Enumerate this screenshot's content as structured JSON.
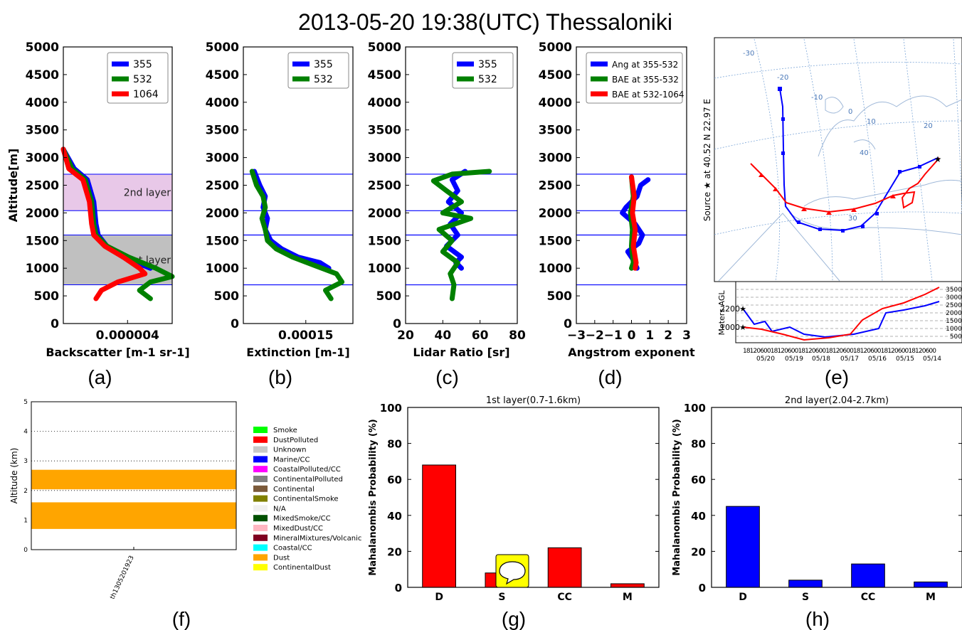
{
  "page_title": "2013-05-20 19:38(UTC) Thessaloniki",
  "colors": {
    "blue": "#0000ff",
    "green": "#008000",
    "red": "#ff0000",
    "pink_layer": "#e8c8e8",
    "gray_layer": "#c0c0c0",
    "orange": "#ffa500"
  },
  "chart_data": [
    {
      "id": "a",
      "type": "line",
      "caption": "(a)",
      "xlabel": "Backscatter [m-1 sr-1]",
      "ylabel": "Altitude[m]",
      "xticks": [
        "0.000004"
      ],
      "ylim": [
        0,
        5000
      ],
      "yticks": [
        "0",
        "500",
        "1000",
        "1500",
        "2000",
        "2500",
        "3000",
        "3500",
        "4000",
        "4500",
        "5000"
      ],
      "legend": [
        "355",
        "532",
        "1064"
      ],
      "layers": [
        {
          "label": "2nd layer",
          "range": [
            2040,
            2700
          ],
          "color": "#e8c8e8"
        },
        {
          "label": "1st layer",
          "range": [
            700,
            1600
          ],
          "color": "#c0c0c0"
        }
      ],
      "series": [
        {
          "name": "355",
          "color": "#0000ff",
          "x": [
            0.0,
            0.1,
            0.22,
            0.28,
            0.3,
            0.32,
            0.4,
            0.55,
            0.8
          ],
          "y": [
            3150,
            2800,
            2600,
            2200,
            1800,
            1600,
            1400,
            1200,
            1000
          ]
        },
        {
          "name": "532",
          "color": "#008000",
          "x": [
            0.0,
            0.08,
            0.2,
            0.26,
            0.28,
            0.3,
            0.4,
            0.6,
            0.85,
            1.0,
            0.8,
            0.7,
            0.8
          ],
          "y": [
            3150,
            2800,
            2600,
            2200,
            1800,
            1600,
            1400,
            1200,
            1000,
            850,
            750,
            600,
            450
          ]
        },
        {
          "name": "1064",
          "color": "#ff0000",
          "x": [
            0.0,
            0.05,
            0.18,
            0.24,
            0.26,
            0.28,
            0.38,
            0.55,
            0.7,
            0.75,
            0.5,
            0.35,
            0.3
          ],
          "y": [
            3150,
            2800,
            2600,
            2200,
            1800,
            1600,
            1400,
            1200,
            1000,
            900,
            750,
            600,
            450
          ]
        }
      ]
    },
    {
      "id": "b",
      "type": "line",
      "caption": "(b)",
      "xlabel": "Extinction [m-1]",
      "xticks": [
        "0.00015"
      ],
      "ylim": [
        0,
        5000
      ],
      "yticks": [
        "0",
        "500",
        "1000",
        "1500",
        "2000",
        "2500",
        "3000",
        "3500",
        "4000",
        "4500",
        "5000"
      ],
      "legend": [
        "355",
        "532"
      ],
      "hlines": [
        2700,
        2040,
        1600,
        700
      ],
      "series": [
        {
          "name": "355",
          "color": "#0000ff",
          "x": [
            0.1,
            0.15,
            0.2,
            0.18,
            0.22,
            0.2,
            0.25,
            0.35,
            0.5,
            0.7,
            0.78
          ],
          "y": [
            2750,
            2500,
            2300,
            2100,
            1900,
            1700,
            1500,
            1350,
            1200,
            1100,
            1000
          ]
        },
        {
          "name": "532",
          "color": "#008000",
          "x": [
            0.08,
            0.12,
            0.18,
            0.2,
            0.17,
            0.2,
            0.22,
            0.3,
            0.45,
            0.65,
            0.85,
            0.9,
            0.75,
            0.8
          ],
          "y": [
            2750,
            2500,
            2300,
            2100,
            1900,
            1700,
            1500,
            1350,
            1200,
            1050,
            900,
            750,
            600,
            450
          ]
        }
      ]
    },
    {
      "id": "c",
      "type": "line",
      "caption": "(c)",
      "xlabel": "Lidar Ratio [sr]",
      "xlim": [
        20,
        80
      ],
      "xticks": [
        "20",
        "40",
        "60",
        "80"
      ],
      "ylim": [
        0,
        5000
      ],
      "yticks": [
        "0",
        "500",
        "1000",
        "1500",
        "2000",
        "2500",
        "3000",
        "3500",
        "4000",
        "4500",
        "5000"
      ],
      "legend": [
        "355",
        "532"
      ],
      "hlines": [
        2700,
        2040,
        1600,
        700
      ],
      "series": [
        {
          "name": "355",
          "color": "#0000ff",
          "x": [
            52,
            45,
            48,
            43,
            50,
            44,
            48,
            42,
            50,
            47,
            50
          ],
          "y": [
            2750,
            2600,
            2400,
            2200,
            2000,
            1800,
            1600,
            1400,
            1200,
            1100,
            1000
          ]
        },
        {
          "name": "532",
          "color": "#008000",
          "x": [
            65,
            45,
            35,
            42,
            50,
            40,
            55,
            38,
            45,
            40,
            48,
            44,
            46,
            45
          ],
          "y": [
            2750,
            2700,
            2580,
            2400,
            2200,
            2000,
            1900,
            1700,
            1500,
            1300,
            1100,
            900,
            700,
            450
          ]
        }
      ]
    },
    {
      "id": "d",
      "type": "line",
      "caption": "(d)",
      "xlabel": "Angstrom exponent",
      "xlim": [
        -3,
        3
      ],
      "xticks": [
        "−3",
        "−2",
        "−1",
        "0",
        "1",
        "2",
        "3"
      ],
      "ylim": [
        0,
        5000
      ],
      "yticks": [
        "0",
        "500",
        "1000",
        "1500",
        "2000",
        "2500",
        "3000",
        "3500",
        "4000",
        "4500",
        "5000"
      ],
      "legend": [
        "Ang at 355-532",
        "BAE at 355-532",
        "BAE at 532-1064"
      ],
      "hlines": [
        2700,
        2040,
        1600,
        700
      ],
      "series": [
        {
          "name": "Ang at 355-532",
          "color": "#0000ff",
          "x": [
            0.9,
            0.5,
            0.3,
            -0.3,
            -0.5,
            0.2,
            0.6,
            0.4,
            -0.2,
            0.1,
            0.3
          ],
          "y": [
            2600,
            2500,
            2300,
            2100,
            2000,
            1800,
            1600,
            1450,
            1300,
            1150,
            1000
          ]
        },
        {
          "name": "BAE at 355-532",
          "color": "#008000",
          "x": [
            0.0,
            0.1,
            -0.05,
            0.05,
            0.0,
            0.1,
            0.0
          ],
          "y": [
            2650,
            2300,
            2000,
            1700,
            1400,
            1100,
            1000
          ]
        },
        {
          "name": "BAE at 532-1064",
          "color": "#ff0000",
          "x": [
            0.0,
            0.15,
            0.05,
            0.2,
            0.1,
            0.25,
            0.2
          ],
          "y": [
            2650,
            2300,
            2000,
            1700,
            1400,
            1100,
            1000
          ]
        }
      ]
    },
    {
      "id": "f",
      "type": "bar",
      "caption": "(f)",
      "ylabel": "Altitude (km)",
      "ylim": [
        0,
        5
      ],
      "yticks": [
        "0",
        "1",
        "2",
        "3",
        "4",
        "5"
      ],
      "categories": [
        "th1305201923"
      ],
      "layers": [
        {
          "class": "Dust",
          "range": [
            0.7,
            1.6
          ],
          "color": "#ffa500"
        },
        {
          "class": "Dust",
          "range": [
            2.04,
            2.7
          ],
          "color": "#ffa500"
        }
      ],
      "legend": [
        {
          "name": "Smoke",
          "color": "#00ff00"
        },
        {
          "name": "DustPolluted",
          "color": "#ff0000"
        },
        {
          "name": "Unknown",
          "color": "#c8c8c8"
        },
        {
          "name": "Marine/CC",
          "color": "#0000ff"
        },
        {
          "name": "CoastalPolluted/CC",
          "color": "#ff00ff"
        },
        {
          "name": "ContinentalPolluted",
          "color": "#808080"
        },
        {
          "name": "Continental",
          "color": "#7b5a3a"
        },
        {
          "name": "ContinentalSmoke",
          "color": "#808000"
        },
        {
          "name": "N/A",
          "color": "#f0f0f0"
        },
        {
          "name": "MixedSmoke/CC",
          "color": "#005000"
        },
        {
          "name": "MixedDust/CC",
          "color": "#ffb6c1"
        },
        {
          "name": "MineralMixtures/Volcanic",
          "color": "#800020"
        },
        {
          "name": "Coastal/CC",
          "color": "#00ffff"
        },
        {
          "name": "Dust",
          "color": "#ffa500"
        },
        {
          "name": "ContinentalDust",
          "color": "#ffff00"
        }
      ]
    },
    {
      "id": "g",
      "type": "bar",
      "caption": "(g)",
      "title": "1st layer(0.7-1.6km)",
      "ylabel": "Mahalanombis Probability (%)",
      "ylim": [
        0,
        100
      ],
      "yticks": [
        "0",
        "20",
        "40",
        "60",
        "80",
        "100"
      ],
      "categories": [
        "D",
        "S",
        "CC",
        "M"
      ],
      "values": [
        68,
        8,
        22,
        2
      ],
      "color": "#ff0000"
    },
    {
      "id": "h",
      "type": "bar",
      "caption": "(h)",
      "title": "2nd layer(2.04-2.7km)",
      "ylabel": "Mahalanombis Probability (%)",
      "ylim": [
        0,
        100
      ],
      "yticks": [
        "0",
        "20",
        "40",
        "60",
        "80",
        "100"
      ],
      "categories": [
        "D",
        "S",
        "CC",
        "M"
      ],
      "values": [
        45,
        4,
        13,
        3
      ],
      "color": "#0000ff"
    }
  ],
  "trajectory_map": {
    "caption": "(e)",
    "side_label": "Source ★ at 40.52 N 22.97 E",
    "lon_labels": [
      "-30",
      "-20",
      "-10",
      "0",
      "10",
      "20",
      "30",
      "40"
    ],
    "map_lat_labels": [
      "30",
      "40"
    ],
    "height_label": "Meters AGL",
    "height_markers": [
      "2200",
      "1000"
    ],
    "height_ticks": [
      "3500",
      "3000",
      "2500",
      "2000",
      "1500",
      "1000",
      "500"
    ],
    "time_ticks": "18120600181206001812060018120600181206001812060018120600",
    "date_ticks": [
      "05/20",
      "05/19",
      "05/18",
      "05/17",
      "05/16",
      "05/15",
      "05/14"
    ],
    "series": [
      {
        "name": "2200 m",
        "color": "#0000ff"
      },
      {
        "name": "1000 m",
        "color": "#ff0000"
      }
    ]
  }
}
